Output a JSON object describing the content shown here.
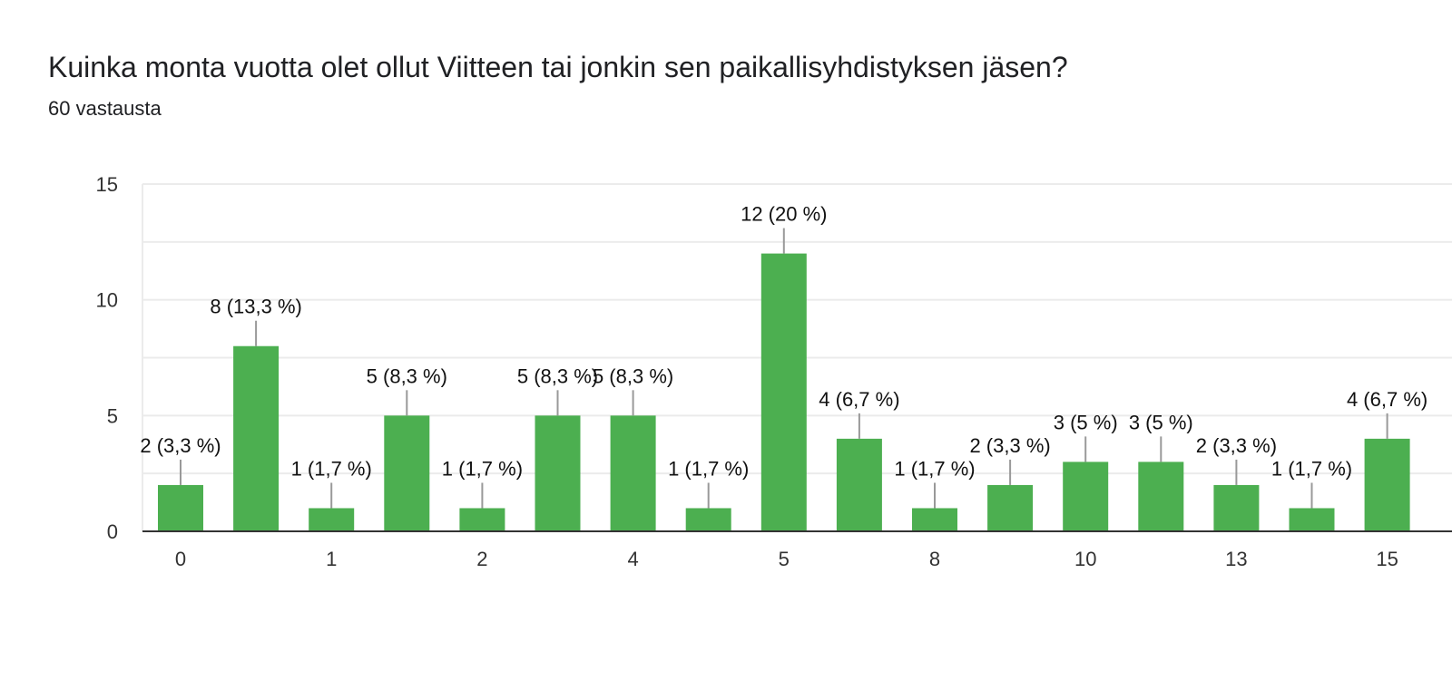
{
  "title": "Kuinka monta vuotta olet ollut Viitteen tai jonkin sen paikallisyhdistyksen jäsen?",
  "subtitle": "60 vastausta",
  "colors": {
    "bar": "#4caf50",
    "grid": "#ebebeb",
    "axis": "#333333",
    "leader": "#999999"
  },
  "chart_data": {
    "type": "bar",
    "title": "Kuinka monta vuotta olet ollut Viitteen tai jonkin sen paikallisyhdistyksen jäsen?",
    "xlabel": "",
    "ylabel": "",
    "ylim": [
      0,
      15
    ],
    "yticks": [
      0,
      5,
      10,
      15
    ],
    "grid": true,
    "x_tick_labels": [
      {
        "index": 0,
        "label": "0"
      },
      {
        "index": 2,
        "label": "1"
      },
      {
        "index": 4,
        "label": "2"
      },
      {
        "index": 6,
        "label": "4"
      },
      {
        "index": 8,
        "label": "5"
      },
      {
        "index": 10,
        "label": "8"
      },
      {
        "index": 12,
        "label": "10"
      },
      {
        "index": 14,
        "label": "13"
      },
      {
        "index": 16,
        "label": "15"
      }
    ],
    "values": [
      2,
      8,
      1,
      5,
      1,
      5,
      5,
      1,
      12,
      4,
      1,
      2,
      3,
      3,
      2,
      1,
      4
    ],
    "data_labels": [
      "2 (3,3 %)",
      "8 (13,3 %)",
      "1 (1,7 %)",
      "5 (8,3 %)",
      "1 (1,7 %)",
      "5 (8,3 %)",
      "5 (8,3 %)",
      "1 (1,7 %)",
      "12 (20 %)",
      "4 (6,7 %)",
      "1 (1,7 %)",
      "2 (3,3 %)",
      "3 (5 %)",
      "3 (5 %)",
      "2 (3,3 %)",
      "1 (1,7 %)",
      "4 (6,7 %)"
    ]
  }
}
